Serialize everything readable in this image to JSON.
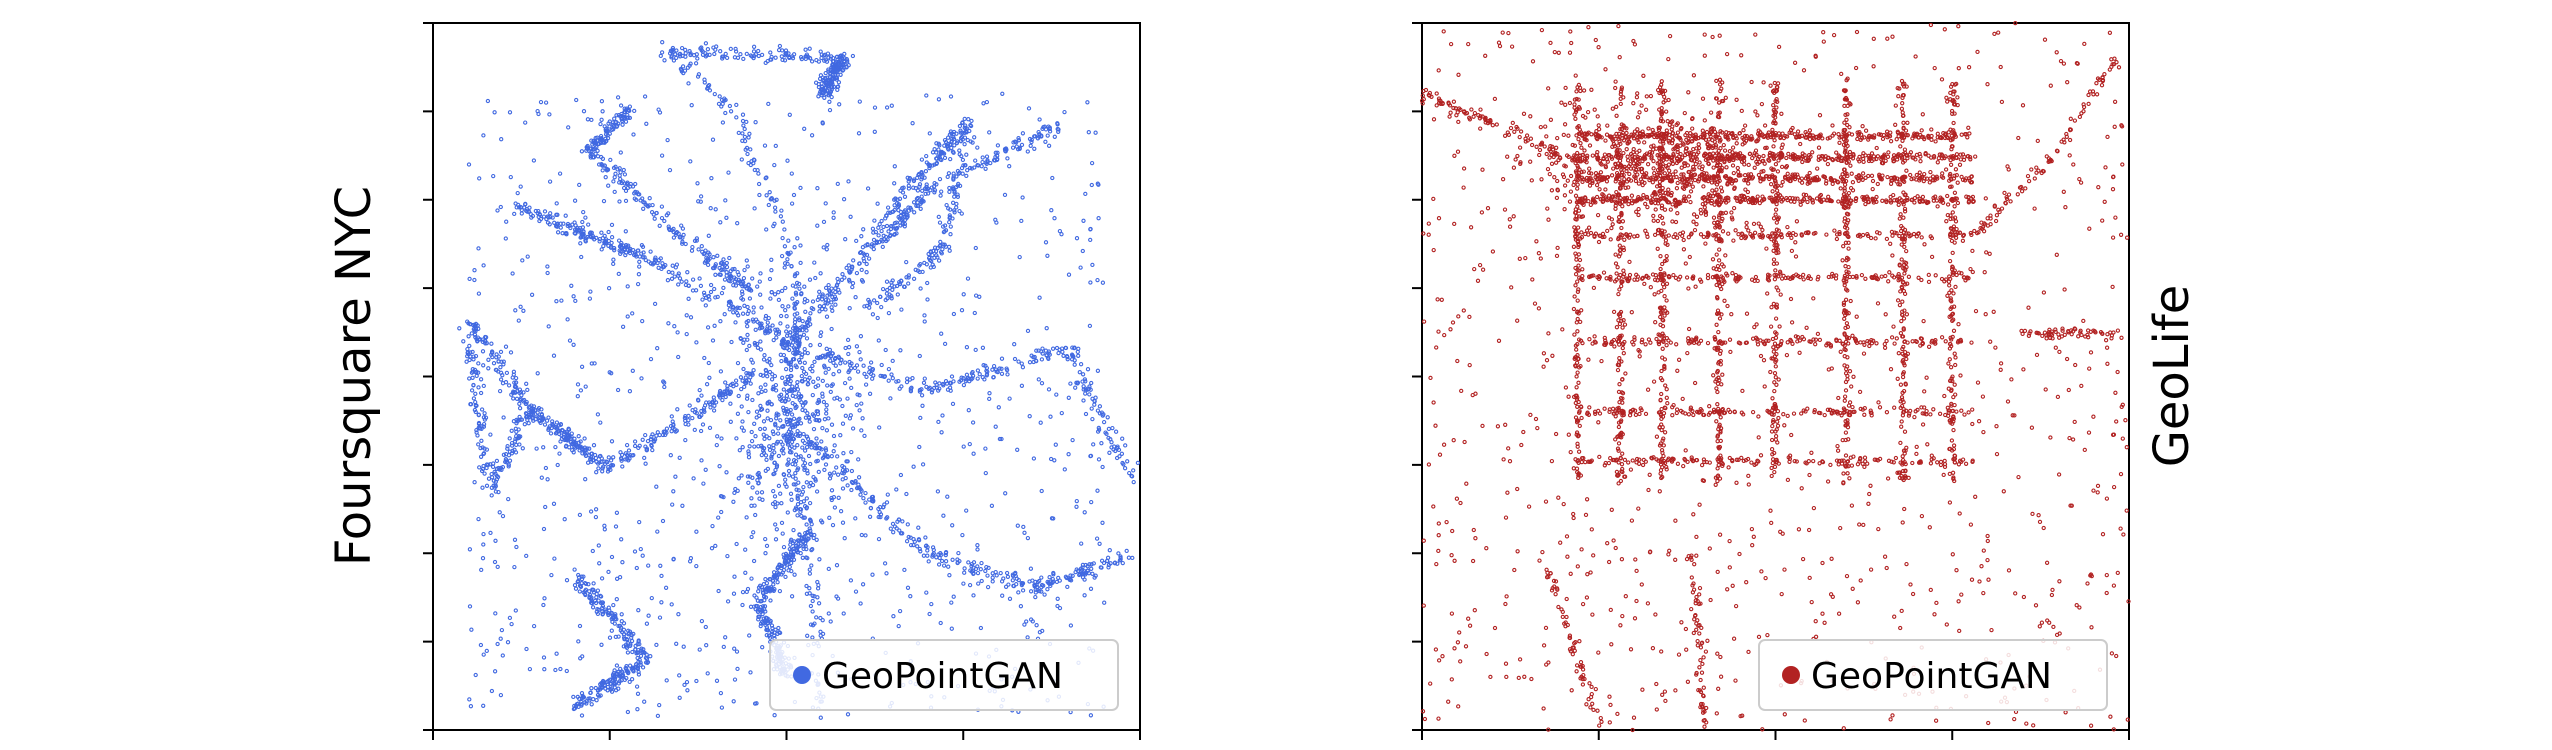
{
  "chart_data": [
    {
      "type": "scatter",
      "panel": "left",
      "ylabel": "Foursquare NYC",
      "xticks": 5,
      "yticks": 9,
      "tick_labels_shown": false,
      "legend": {
        "label": "GeoPointGAN",
        "placement": "lower-right"
      },
      "series": [
        {
          "name": "GeoPointGAN",
          "color": "#4169e1"
        }
      ],
      "description_of_points": "dense synthetic point cloud of Manhattan-like road network, concentrated near center"
    },
    {
      "type": "scatter",
      "panel": "right",
      "ylabel_right": "GeoLife",
      "xticks": 5,
      "yticks": 9,
      "tick_labels_shown": false,
      "legend": {
        "label": "GeoPointGAN",
        "placement": "lower-right"
      },
      "series": [
        {
          "name": "GeoPointGAN",
          "color": "#b22222"
        }
      ],
      "description_of_points": "grid-like point cloud of Beijing road network, densest in upper-center"
    }
  ]
}
